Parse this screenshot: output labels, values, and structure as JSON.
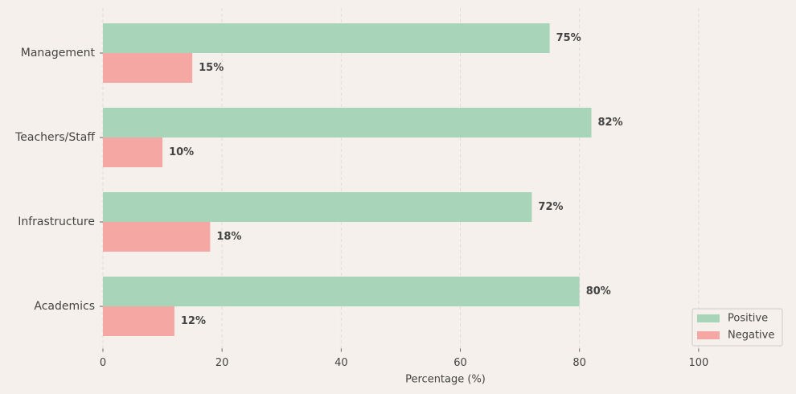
{
  "chart_data": {
    "type": "hbar",
    "xlabel": "Percentage (%)",
    "categories": [
      "Management",
      "Teachers/Staff",
      "Infrastructure",
      "Academics"
    ],
    "series": [
      {
        "name": "Positive",
        "color": "#a8d5ba",
        "values": [
          75,
          82,
          72,
          80
        ],
        "value_labels": [
          "75%",
          "82%",
          "72%",
          "80%"
        ]
      },
      {
        "name": "Negative",
        "color": "#f4a7a3",
        "values": [
          15,
          10,
          18,
          12
        ],
        "value_labels": [
          "15%",
          "10%",
          "18%",
          "12%"
        ]
      }
    ],
    "xlim": [
      0,
      115
    ],
    "xticks": [
      0,
      20,
      40,
      60,
      80,
      100
    ],
    "grid": true,
    "legend": "lower right"
  }
}
